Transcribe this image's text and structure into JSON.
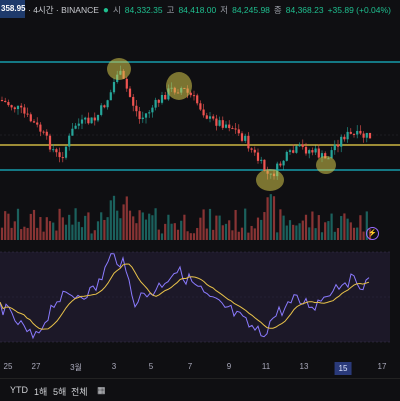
{
  "topbar": {
    "price_box": "358.95",
    "sub_tag": "",
    "source": "· 4시간 · BINANCE",
    "o_label": "시",
    "o_value": "84,332.35",
    "h_label": "고",
    "h_value": "84,418.00",
    "l_label": "저",
    "l_value": "84,245.98",
    "c_label": "종",
    "c_value": "84,368.23",
    "change": "+35.89 (+0.04%)"
  },
  "time_axis": {
    "labels": [
      "25",
      "27",
      "3월",
      "3",
      "5",
      "7",
      "9",
      "11",
      "13",
      "15",
      "17"
    ],
    "highlighted": "15"
  },
  "bottom_toolbar": {
    "items": [
      "YTD",
      "1해",
      "5해",
      "전체"
    ]
  },
  "colors": {
    "up": "#26a69a",
    "down": "#ef5350",
    "support": "#18b7c9",
    "mid_line": "#f2d64b",
    "rsi": "#8b7bff",
    "rsi_ma": "#e8c24a",
    "highlight": "#d6c94a"
  }
}
